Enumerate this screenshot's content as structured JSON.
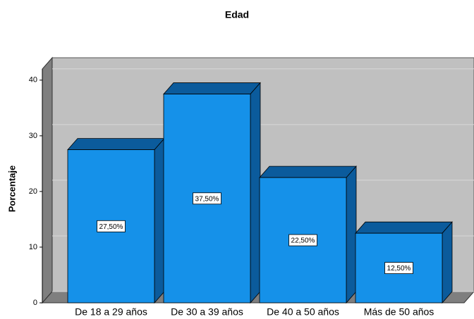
{
  "chart_data": {
    "type": "bar3d",
    "title": "Edad",
    "y_label": "Porcentaje",
    "categories": [
      "De 18 a 29 años",
      "De 30 a 39 años",
      "De 40 a 50 años",
      "Más de 50 años"
    ],
    "values": [
      27.5,
      37.5,
      22.5,
      12.5
    ],
    "value_labels": [
      "27,50%",
      "37,50%",
      "22,50%",
      "12,50%"
    ],
    "color": "#1591e9",
    "shade_color": "#0b5b9c",
    "ylim": [
      0,
      42
    ],
    "yticks": [
      0,
      10,
      20,
      30,
      40
    ],
    "grid": true
  }
}
